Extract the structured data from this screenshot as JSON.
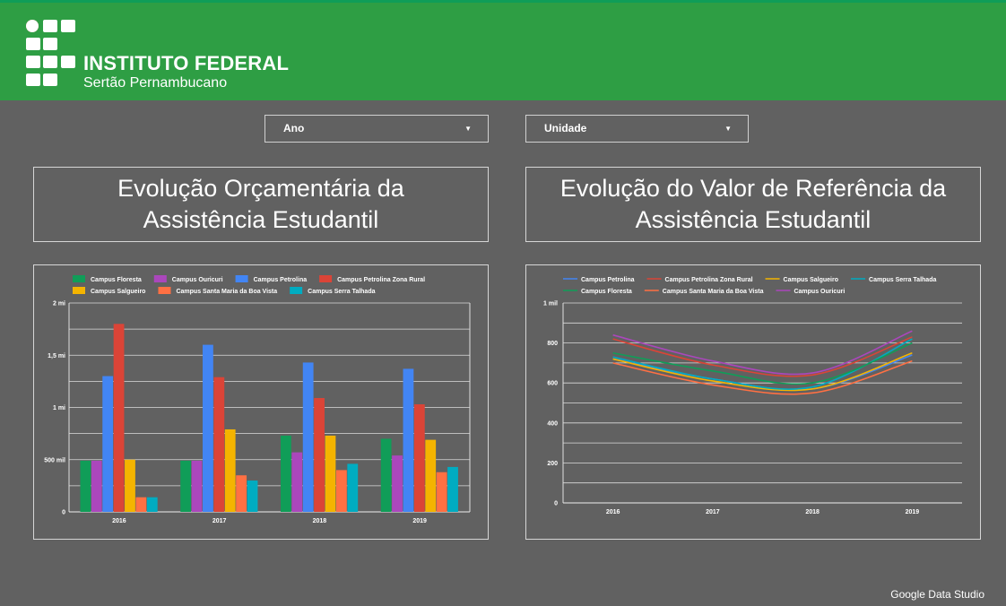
{
  "header": {
    "brand_line1": "INSTITUTO FEDERAL",
    "brand_line2": "Sertão Pernambucano",
    "logo_icon": "ifsertao-logo-icon"
  },
  "filters": {
    "year_label": "Ano",
    "unit_label": "Unidade"
  },
  "panels": {
    "left_title_line1": "Evolução Orçamentária da",
    "left_title_line2": "Assistência Estudantil",
    "right_title_line1": "Evolução do Valor de Referência da",
    "right_title_line2": "Assistência Estudantil"
  },
  "footer": {
    "text": "Google Data Studio"
  },
  "chart_data": [
    {
      "type": "bar",
      "categories": [
        "2016",
        "2017",
        "2018",
        "2019"
      ],
      "yticks": [
        "0",
        "500 mil",
        "1 mi",
        "1,5 mi",
        "2 mi"
      ],
      "ylim": [
        0,
        2000000
      ],
      "legend_position": "top",
      "grid": true,
      "series": [
        {
          "name": "Campus Floresta",
          "color": "#109d58",
          "values": [
            490000,
            490000,
            730000,
            700000
          ]
        },
        {
          "name": "Campus Ouricuri",
          "color": "#ab47bc",
          "values": [
            490000,
            490000,
            570000,
            540000
          ]
        },
        {
          "name": "Campus Petrolina",
          "color": "#4285f4",
          "values": [
            1300000,
            1600000,
            1430000,
            1370000
          ]
        },
        {
          "name": "Campus Petrolina Zona Rural",
          "color": "#db4437",
          "values": [
            1800000,
            1290000,
            1090000,
            1030000
          ]
        },
        {
          "name": "Campus Salgueiro",
          "color": "#f4b400",
          "values": [
            500000,
            790000,
            730000,
            690000
          ]
        },
        {
          "name": "Campus Santa Maria da Boa Vista",
          "color": "#ff7043",
          "values": [
            140000,
            350000,
            400000,
            380000
          ]
        },
        {
          "name": "Campus Serra Talhada",
          "color": "#00acc1",
          "values": [
            140000,
            300000,
            460000,
            430000
          ]
        }
      ]
    },
    {
      "type": "line",
      "categories": [
        "2016",
        "2017",
        "2018",
        "2019"
      ],
      "yticks": [
        "0",
        "200",
        "400",
        "600",
        "800",
        "1 mil"
      ],
      "ylim": [
        0,
        1000
      ],
      "legend_position": "top",
      "grid": true,
      "series": [
        {
          "name": "Campus Petrolina",
          "color": "#4285f4",
          "values": [
            720,
            620,
            570,
            740
          ]
        },
        {
          "name": "Campus Petrolina Zona Rural",
          "color": "#db4437",
          "values": [
            820,
            690,
            640,
            830
          ]
        },
        {
          "name": "Campus Salgueiro",
          "color": "#f4b400",
          "values": [
            720,
            610,
            570,
            750
          ]
        },
        {
          "name": "Campus Serra Talhada",
          "color": "#00acc1",
          "values": [
            730,
            620,
            580,
            820
          ]
        },
        {
          "name": "Campus Floresta",
          "color": "#109d58",
          "values": [
            750,
            660,
            600,
            800
          ]
        },
        {
          "name": "Campus Santa Maria da Boa Vista",
          "color": "#ff7043",
          "values": [
            700,
            590,
            550,
            710
          ]
        },
        {
          "name": "Campus Ouricuri",
          "color": "#ab47bc",
          "values": [
            840,
            710,
            650,
            860
          ]
        }
      ]
    }
  ]
}
